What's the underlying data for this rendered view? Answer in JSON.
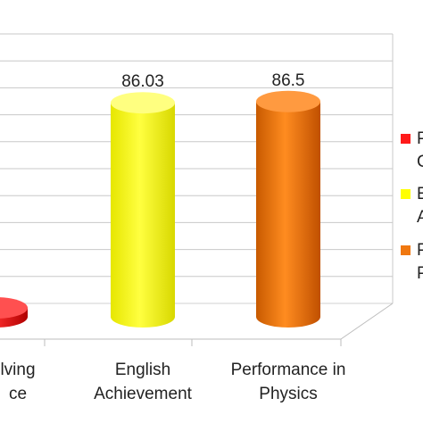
{
  "chart_data": {
    "type": "bar",
    "title": "",
    "xlabel": "",
    "ylabel": "",
    "categories": [
      [
        "lving",
        "ce"
      ],
      [
        "English",
        "Achievement"
      ],
      [
        "Performance in",
        "Physics"
      ]
    ],
    "values": [
      null,
      86.03,
      86.5
    ],
    "data_labels": [
      "",
      "86.03",
      "86.5"
    ],
    "colors": [
      "#ff1a1a",
      "#ffff00",
      "#f07810"
    ],
    "legend": {
      "placement": "right",
      "entries": [
        {
          "line1": "P",
          "line2": "C",
          "color": "#ff1a1a"
        },
        {
          "line1": "E",
          "line2": "A",
          "color": "#ffff00"
        },
        {
          "line1": "P",
          "line2": "P",
          "color": "#f07810"
        }
      ]
    },
    "grid": true,
    "ylim": [
      0,
      100
    ],
    "style": "3d-cylinder"
  }
}
